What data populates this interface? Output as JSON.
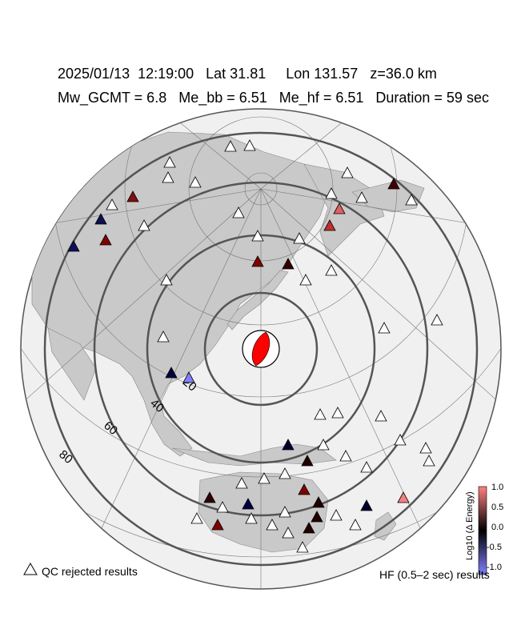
{
  "header": {
    "line1": "2025/01/13  12:19:00   Lat 31.81     Lon 131.57   z=36.0 km",
    "line2": "Mw_GCMT = 6.8   Me_bb = 6.51   Me_hf = 6.51   Duration = 59 sec"
  },
  "distance_rings": [
    {
      "label": "20",
      "deg": 20
    },
    {
      "label": "40",
      "deg": 40
    },
    {
      "label": "60",
      "deg": 60
    },
    {
      "label": "80",
      "deg": 80
    }
  ],
  "colorbar": {
    "title": "Log10 (Δ Energy)",
    "ticks": [
      "1.0",
      "0.5",
      "0.0",
      "-0.5",
      "-1.0"
    ],
    "min_color": "#8080ff",
    "mid_color": "#000000",
    "max_color": "#ff8080"
  },
  "legend": {
    "qc_label": "QC rejected results",
    "hf_label": "HF (0.5–2 sec) results"
  },
  "colors": {
    "beachball_fill": "#ff0000",
    "land": "#c8c8c8",
    "ocean": "#f0f0f0",
    "ring": "#555555"
  }
}
